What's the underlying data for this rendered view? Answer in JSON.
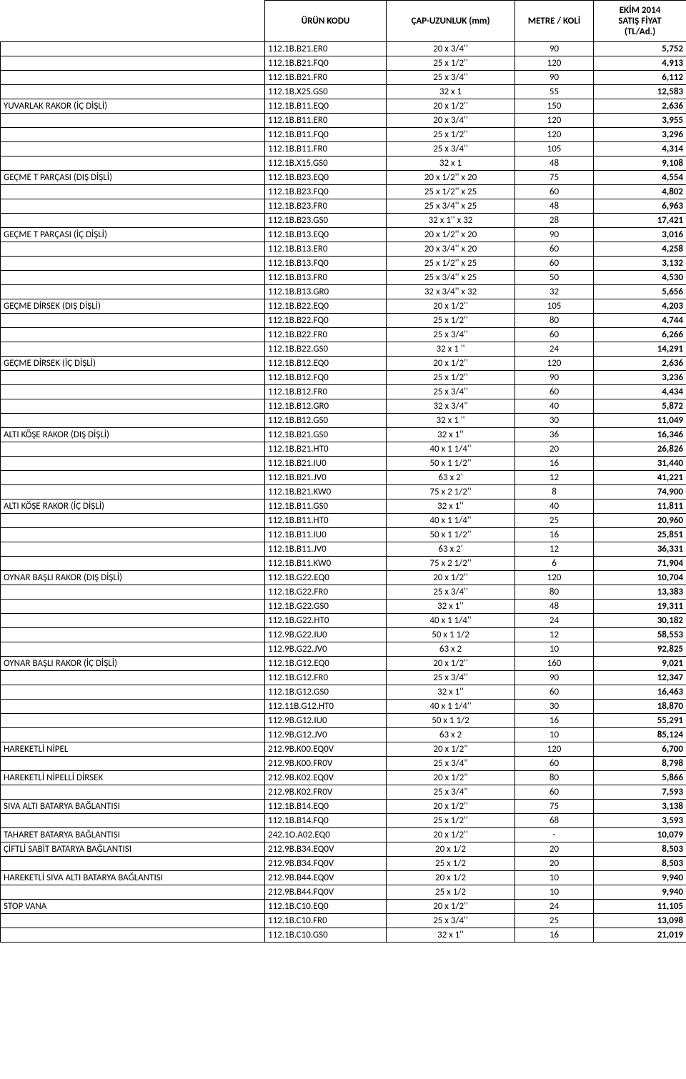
{
  "header": {
    "code": "ÜRÜN KODU",
    "dim": "ÇAP-UZUNLUK (mm)",
    "qty": "METRE / KOLİ",
    "price": "EKİM 2014\nSATIŞ FİYAT\n(TL/Ad.)"
  },
  "rows": [
    {
      "desc": "",
      "code": "112.1B.B21.ER0",
      "dim": "20 x 3/4''",
      "qty": "90",
      "price": "5,752"
    },
    {
      "desc": "",
      "code": "112.1B.B21.FQ0",
      "dim": "25 x 1/2''",
      "qty": "120",
      "price": "4,913"
    },
    {
      "desc": "",
      "code": "112.1B.B21.FR0",
      "dim": "25 x 3/4''",
      "qty": "90",
      "price": "6,112"
    },
    {
      "desc": "",
      "code": "112.1B.X25.GS0",
      "dim": "32  x  1",
      "qty": "55",
      "price": "12,583"
    },
    {
      "desc": "YUVARLAK RAKOR (İÇ DİŞLİ)",
      "code": "112.1B.B11.EQ0",
      "dim": "20 x 1/2''",
      "qty": "150",
      "price": "2,636"
    },
    {
      "desc": "",
      "code": "112.1B.B11.ER0",
      "dim": "20 x 3/4''",
      "qty": "120",
      "price": "3,955"
    },
    {
      "desc": "",
      "code": "112.1B.B11.FQ0",
      "dim": "25 x 1/2''",
      "qty": "120",
      "price": "3,296"
    },
    {
      "desc": "",
      "code": "112.1B.B11.FR0",
      "dim": "25 x 3/4''",
      "qty": "105",
      "price": "4,314"
    },
    {
      "desc": "",
      "code": "112.1B.X15.GS0",
      "dim": "32  x  1",
      "qty": "48",
      "price": "9,108"
    },
    {
      "desc": "GEÇME T PARÇASI (DIŞ DİŞLİ)",
      "code": "112.1B.B23.EQ0",
      "dim": "20 x 1/2'' x 20",
      "qty": "75",
      "price": "4,554"
    },
    {
      "desc": "",
      "code": "112.1B.B23.FQ0",
      "dim": "25 x 1/2''  x 25",
      "qty": "60",
      "price": "4,802"
    },
    {
      "desc": "",
      "code": "112.1B.B23.FR0",
      "dim": "25 x 3/4'' x 25",
      "qty": "48",
      "price": "6,963"
    },
    {
      "desc": "",
      "code": "112.1B.B23.GS0",
      "dim": "32  x  1'' x  32",
      "qty": "28",
      "price": "17,421"
    },
    {
      "desc": "GEÇME T PARÇASI (İÇ DİŞLİ)",
      "code": "112.1B.B13.EQ0",
      "dim": "20 x 1/2'' x 20",
      "qty": "90",
      "price": "3,016"
    },
    {
      "desc": "",
      "code": "112.1B.B13.ER0",
      "dim": "20 x 3/4'' x 20",
      "qty": "60",
      "price": "4,258"
    },
    {
      "desc": "",
      "code": "112.1B.B13.FQ0",
      "dim": "25 x 1/2''  x 25",
      "qty": "60",
      "price": "3,132"
    },
    {
      "desc": "",
      "code": "112.1B.B13.FR0",
      "dim": "25 x 3/4'' x 25",
      "qty": "50",
      "price": "4,530"
    },
    {
      "desc": "",
      "code": "112.1B.B13.GR0",
      "dim": "32 x 3/4'' x 32",
      "qty": "32",
      "price": "5,656"
    },
    {
      "desc": "GEÇME DİRSEK (DIŞ DİŞLİ)",
      "code": "112.1B.B22.EQ0",
      "dim": "20 x 1/2''",
      "qty": "105",
      "price": "4,203"
    },
    {
      "desc": "",
      "code": "112.1B.B22.FQ0",
      "dim": "25 x 1/2''",
      "qty": "80",
      "price": "4,744"
    },
    {
      "desc": "",
      "code": "112.1B.B22.FR0",
      "dim": "25 x 3/4''",
      "qty": "60",
      "price": "6,266"
    },
    {
      "desc": "",
      "code": "112.1B.B22.GS0",
      "dim": "32 x 1 ''",
      "qty": "24",
      "price": "14,291"
    },
    {
      "desc": "GEÇME DİRSEK (İÇ DİŞLİ)",
      "code": "112.1B.B12.EQ0",
      "dim": "20 x 1/2''",
      "qty": "120",
      "price": "2,636"
    },
    {
      "desc": "",
      "code": "112.1B.B12.FQ0",
      "dim": "25 x 1/2''",
      "qty": "90",
      "price": "3,236"
    },
    {
      "desc": "",
      "code": "112.1B.B12.FR0",
      "dim": "25 x 3/4''",
      "qty": "60",
      "price": "4,434"
    },
    {
      "desc": "",
      "code": "112.1B.B12.GR0",
      "dim": "32 x 3/4\"",
      "qty": "40",
      "price": "5,872"
    },
    {
      "desc": "",
      "code": "112.1B.B12.GS0",
      "dim": "32 x 1 ''",
      "qty": "30",
      "price": "11,049"
    },
    {
      "desc": "ALTI KÖŞE RAKOR (DIŞ DİŞLİ)",
      "code": "112.1B.B21.GS0",
      "dim": "32 x 1''",
      "qty": "36",
      "price": "16,346"
    },
    {
      "desc": "",
      "code": "112.1B.B21.HT0",
      "dim": "40 x 1 1/4''",
      "qty": "20",
      "price": "26,826"
    },
    {
      "desc": "",
      "code": "112.1B.B21.IU0",
      "dim": "50 x 1 1/2''",
      "qty": "16",
      "price": "31,440"
    },
    {
      "desc": "",
      "code": "112.1B.B21.JV0",
      "dim": "63 x 2'",
      "qty": "12",
      "price": "41,221"
    },
    {
      "desc": "",
      "code": "112.1B.B21.KW0",
      "dim": "75 x 2 1/2''",
      "qty": "8",
      "price": "74,900"
    },
    {
      "desc": "ALTI KÖŞE RAKOR (İÇ DİŞLİ)",
      "code": "112.1B.B11.GS0",
      "dim": "32 x 1''",
      "qty": "40",
      "price": "11,811"
    },
    {
      "desc": "",
      "code": "112.1B.B11.HT0",
      "dim": "40 x 1 1/4''",
      "qty": "25",
      "price": "20,960"
    },
    {
      "desc": "",
      "code": "112.1B.B11.IU0",
      "dim": "50 x 1 1/2''",
      "qty": "16",
      "price": "25,851"
    },
    {
      "desc": "",
      "code": "112.1B.B11.JV0",
      "dim": "63 x 2'",
      "qty": "12",
      "price": "36,331"
    },
    {
      "desc": "",
      "code": "112.1B.B11.KW0",
      "dim": "75 x 2 1/2''",
      "qty": "6",
      "price": "71,904"
    },
    {
      "desc": "OYNAR BAŞLI RAKOR (DIŞ DİŞLİ)",
      "code": "112.1B.G22.EQ0",
      "dim": "20 x 1/2''",
      "qty": "120",
      "price": "10,704"
    },
    {
      "desc": "",
      "code": "112.1B.G22.FR0",
      "dim": "25 x 3/4''",
      "qty": "80",
      "price": "13,383"
    },
    {
      "desc": "",
      "code": "112.1B.G22.GS0",
      "dim": "32 x 1''",
      "qty": "48",
      "price": "19,311"
    },
    {
      "desc": "",
      "code": "112.1B.G22.HT0",
      "dim": "40 x 1 1/4''",
      "qty": "24",
      "price": "30,182"
    },
    {
      "desc": "",
      "code": "112.9B.G22.IU0",
      "dim": "50 x 1 1/2",
      "qty": "12",
      "price": "58,553"
    },
    {
      "desc": "",
      "code": "112.9B.G22.JV0",
      "dim": "63 x 2",
      "qty": "10",
      "price": "92,825"
    },
    {
      "desc": "OYNAR BAŞLI RAKOR (İÇ DİŞLİ)",
      "code": "112.1B.G12.EQ0",
      "dim": "20 x 1/2''",
      "qty": "160",
      "price": "9,021"
    },
    {
      "desc": "",
      "code": "112.1B.G12.FR0",
      "dim": "25 x 3/4''",
      "qty": "90",
      "price": "12,347"
    },
    {
      "desc": "",
      "code": "112.1B.G12.GS0",
      "dim": "32 x 1''",
      "qty": "60",
      "price": "16,463"
    },
    {
      "desc": "",
      "code": "112.11B.G12.HT0",
      "dim": "40 x 1 1/4''",
      "qty": "30",
      "price": "18,870"
    },
    {
      "desc": "",
      "code": "112.9B.G12.IU0",
      "dim": "50 x 1 1/2",
      "qty": "16",
      "price": "55,291"
    },
    {
      "desc": "",
      "code": "112.9B.G12.JV0",
      "dim": "63 x 2",
      "qty": "10",
      "price": "85,124"
    },
    {
      "desc": "HAREKETLİ NİPEL",
      "code": "212.9B.K00.EQ0V",
      "dim": "20 x 1/2\"",
      "qty": "120",
      "price": "6,700"
    },
    {
      "desc": "",
      "code": "212.9B.K00.FR0V",
      "dim": "25 x 3/4\"",
      "qty": "60",
      "price": "8,798"
    },
    {
      "desc": "HAREKETLİ NİPELLİ DİRSEK",
      "code": "212.9B.K02.EQ0V",
      "dim": "20 x 1/2\"",
      "qty": "80",
      "price": "5,866"
    },
    {
      "desc": "",
      "code": "212.9B.K02.FR0V",
      "dim": "25 x 3/4\"",
      "qty": "60",
      "price": "7,593"
    },
    {
      "desc": "SIVA ALTI BATARYA BAĞLANTISI",
      "code": "112.1B.B14.EQ0",
      "dim": "20 x 1/2''",
      "qty": "75",
      "price": "3,138"
    },
    {
      "desc": "",
      "code": "112.1B.B14.FQ0",
      "dim": "25 x 1/2''",
      "qty": "68",
      "price": "3,593"
    },
    {
      "desc": "TAHARET BATARYA BAĞLANTISI",
      "code": "242.1O.A02.EQ0",
      "dim": "20 x 1/2''",
      "qty": "-",
      "price": "10,079"
    },
    {
      "desc": "ÇİFTLİ SABİT BATARYA BAĞLANTISI",
      "code": "212.9B.B34.EQ0V",
      "dim": "20 x 1/2",
      "qty": "20",
      "price": "8,503"
    },
    {
      "desc": "",
      "code": "212.9B.B34.FQ0V",
      "dim": "25 x 1/2",
      "qty": "20",
      "price": "8,503"
    },
    {
      "desc": "HAREKETLİ SIVA ALTI BATARYA BAĞLANTISI",
      "code": "212.9B.B44.EQ0V",
      "dim": "20 x 1/2",
      "qty": "10",
      "price": "9,940"
    },
    {
      "desc": "",
      "code": "212.9B.B44.FQ0V",
      "dim": "25 x 1/2",
      "qty": "10",
      "price": "9,940"
    },
    {
      "desc": "STOP VANA",
      "code": "112.1B.C10.EQ0",
      "dim": "20 x 1/2''",
      "qty": "24",
      "price": "11,105"
    },
    {
      "desc": "",
      "code": "112.1B.C10.FR0",
      "dim": "25 x 3/4''",
      "qty": "25",
      "price": "13,098"
    },
    {
      "desc": "",
      "code": "112.1B.C10.GS0",
      "dim": "32 x 1''",
      "qty": "16",
      "price": "21,019"
    }
  ]
}
